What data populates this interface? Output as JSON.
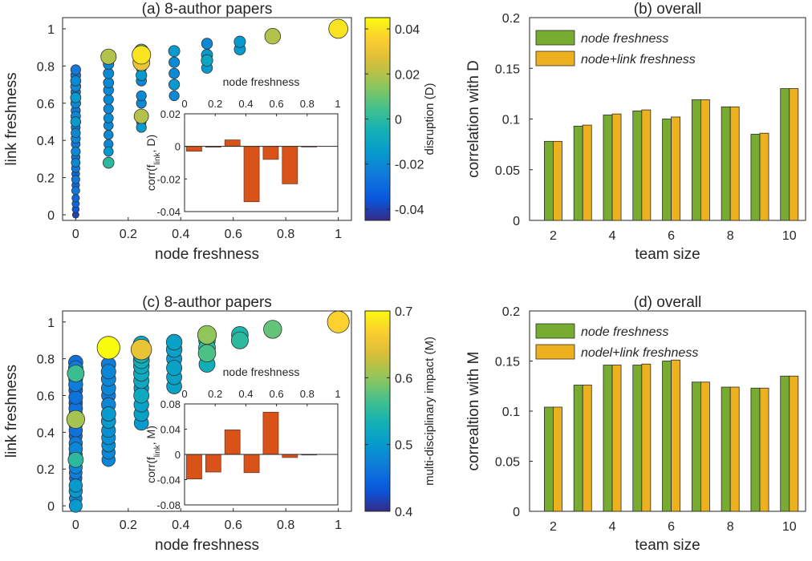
{
  "colors": {
    "green": "#77AC30",
    "orange": "#EDB120",
    "inset_bar": "#D95319"
  },
  "chart_data": [
    {
      "id": "a",
      "type": "scatter",
      "title": "(a) 8-author papers",
      "xlabel": "node freshness",
      "ylabel": "link freshness",
      "xlim": [
        -0.05,
        1.05
      ],
      "ylim": [
        -0.03,
        1.06
      ],
      "xticks": [
        "0",
        "0.2",
        "0.4",
        "0.6",
        "0.8",
        "1"
      ],
      "xtick_vals": [
        0,
        0.2,
        0.4,
        0.6,
        0.8,
        1
      ],
      "yticks": [
        "0",
        "0.2",
        "0.4",
        "0.6",
        "0.8",
        "1"
      ],
      "ytick_vals": [
        0,
        0.2,
        0.4,
        0.6,
        0.8,
        1
      ],
      "colorbar": {
        "label": "disruption (D)",
        "range": [
          -0.045,
          0.045
        ],
        "ticks": [
          "-0.04",
          "-0.02",
          "0",
          "0.02",
          "0.04"
        ],
        "tick_vals": [
          -0.04,
          -0.02,
          0,
          0.02,
          0.04
        ]
      },
      "points": [
        [
          0,
          0,
          -0.04
        ],
        [
          0,
          0.03,
          -0.035
        ],
        [
          0,
          0.06,
          -0.03
        ],
        [
          0,
          0.09,
          -0.03
        ],
        [
          0,
          0.13,
          -0.025
        ],
        [
          0,
          0.16,
          -0.03
        ],
        [
          0,
          0.19,
          -0.025
        ],
        [
          0,
          0.22,
          -0.03
        ],
        [
          0,
          0.25,
          -0.025
        ],
        [
          0,
          0.28,
          -0.02
        ],
        [
          0,
          0.31,
          -0.025
        ],
        [
          0,
          0.34,
          -0.02
        ],
        [
          0,
          0.38,
          -0.025
        ],
        [
          0,
          0.41,
          -0.02
        ],
        [
          0,
          0.44,
          -0.02
        ],
        [
          0,
          0.47,
          -0.025
        ],
        [
          0,
          0.5,
          -0.015
        ],
        [
          0,
          0.53,
          -0.02
        ],
        [
          0,
          0.56,
          -0.025
        ],
        [
          0,
          0.6,
          -0.02
        ],
        [
          0,
          0.63,
          -0.015
        ],
        [
          0,
          0.66,
          -0.025
        ],
        [
          0,
          0.69,
          -0.02
        ],
        [
          0,
          0.72,
          -0.02
        ],
        [
          0,
          0.75,
          -0.025
        ],
        [
          0,
          0.78,
          -0.025
        ],
        [
          0.125,
          0.28,
          0.0
        ],
        [
          0.125,
          0.34,
          -0.015
        ],
        [
          0.125,
          0.38,
          -0.02
        ],
        [
          0.125,
          0.43,
          -0.02
        ],
        [
          0.125,
          0.48,
          -0.02
        ],
        [
          0.125,
          0.52,
          -0.02
        ],
        [
          0.125,
          0.57,
          -0.02
        ],
        [
          0.125,
          0.62,
          -0.02
        ],
        [
          0.125,
          0.67,
          -0.02
        ],
        [
          0.125,
          0.71,
          -0.02
        ],
        [
          0.125,
          0.76,
          -0.02
        ],
        [
          0.125,
          0.81,
          -0.02
        ],
        [
          0.125,
          0.85,
          0.02
        ],
        [
          0.25,
          0.47,
          -0.015
        ],
        [
          0.25,
          0.5,
          -0.02
        ],
        [
          0.25,
          0.53,
          0.02
        ],
        [
          0.25,
          0.6,
          -0.02
        ],
        [
          0.25,
          0.64,
          -0.02
        ],
        [
          0.25,
          0.72,
          -0.02
        ],
        [
          0.25,
          0.75,
          -0.015
        ],
        [
          0.25,
          0.79,
          -0.02
        ],
        [
          0.25,
          0.82,
          0.03
        ],
        [
          0.25,
          0.86,
          0.04
        ],
        [
          0.25,
          0.88,
          0.01
        ],
        [
          0.375,
          0.64,
          -0.02
        ],
        [
          0.375,
          0.7,
          -0.015
        ],
        [
          0.375,
          0.76,
          -0.02
        ],
        [
          0.375,
          0.82,
          -0.02
        ],
        [
          0.375,
          0.88,
          -0.015
        ],
        [
          0.5,
          0.79,
          -0.015
        ],
        [
          0.5,
          0.83,
          -0.01
        ],
        [
          0.5,
          0.86,
          -0.015
        ],
        [
          0.5,
          0.92,
          -0.02
        ],
        [
          0.625,
          0.89,
          -0.015
        ],
        [
          0.625,
          0.93,
          -0.015
        ],
        [
          0.75,
          0.96,
          0.02
        ],
        [
          1,
          1,
          0.04
        ]
      ],
      "inset": {
        "xlabel": "node freshness",
        "ylabel": "corr(f_link, D)",
        "xticks": [
          "0",
          "0.2",
          "0.4",
          "0.6",
          "0.8",
          "1"
        ],
        "xtick_vals": [
          0,
          0.2,
          0.4,
          0.6,
          0.8,
          1
        ],
        "yticks": [
          "0.02",
          "0",
          "-0.02",
          "-0.04"
        ],
        "ytick_vals": [
          0.02,
          0,
          -0.02,
          -0.04
        ],
        "ylim": [
          -0.04,
          0.02
        ],
        "x": [
          0,
          0.125,
          0.25,
          0.375,
          0.5,
          0.625,
          0.75
        ],
        "values": [
          -0.003,
          -0.0005,
          0.004,
          -0.034,
          -0.008,
          -0.023,
          0.0
        ]
      }
    },
    {
      "id": "b",
      "type": "bar",
      "title": "(b) overall",
      "xlabel": "team size",
      "ylabel": "correlation with D",
      "ylim": [
        0,
        0.2
      ],
      "xticks": [
        "2",
        "4",
        "6",
        "8",
        "10"
      ],
      "xtick_vals": [
        2,
        4,
        6,
        8,
        10
      ],
      "yticks": [
        "0",
        "0.05",
        "0.1",
        "0.15",
        "0.2"
      ],
      "ytick_vals": [
        0,
        0.05,
        0.1,
        0.15,
        0.2
      ],
      "categories": [
        2,
        3,
        4,
        5,
        6,
        7,
        8,
        9,
        10
      ],
      "legend_position": "top-left",
      "series": [
        {
          "name": "node freshness",
          "values": [
            0.078,
            0.093,
            0.104,
            0.108,
            0.1,
            0.119,
            0.112,
            0.085,
            0.13
          ]
        },
        {
          "name": "node+link freshness",
          "values": [
            0.078,
            0.094,
            0.105,
            0.109,
            0.102,
            0.119,
            0.112,
            0.086,
            0.13
          ]
        }
      ]
    },
    {
      "id": "c",
      "type": "scatter",
      "title": "(c) 8-author papers",
      "xlabel": "node freshness",
      "ylabel": "link freshness",
      "xlim": [
        -0.05,
        1.05
      ],
      "ylim": [
        -0.03,
        1.06
      ],
      "xticks": [
        "0",
        "0.2",
        "0.4",
        "0.6",
        "0.8",
        "1"
      ],
      "xtick_vals": [
        0,
        0.2,
        0.4,
        0.6,
        0.8,
        1
      ],
      "yticks": [
        "0",
        "0.2",
        "0.4",
        "0.6",
        "0.8",
        "1"
      ],
      "ytick_vals": [
        0,
        0.2,
        0.4,
        0.6,
        0.8,
        1
      ],
      "colorbar": {
        "label": "multi-disciplinary impact (M)",
        "range": [
          0.4,
          0.7
        ],
        "ticks": [
          "0.4",
          "0.5",
          "0.6",
          "0.7"
        ],
        "tick_vals": [
          0.4,
          0.5,
          0.6,
          0.7
        ]
      },
      "points": [
        [
          0,
          0,
          0.5
        ],
        [
          0,
          0.04,
          0.48
        ],
        [
          0,
          0.08,
          0.5
        ],
        [
          0,
          0.11,
          0.5
        ],
        [
          0,
          0.15,
          0.46
        ],
        [
          0,
          0.18,
          0.47
        ],
        [
          0,
          0.21,
          0.48
        ],
        [
          0,
          0.25,
          0.55
        ],
        [
          0,
          0.28,
          0.47
        ],
        [
          0,
          0.31,
          0.48
        ],
        [
          0,
          0.34,
          0.47
        ],
        [
          0,
          0.38,
          0.46
        ],
        [
          0,
          0.41,
          0.46
        ],
        [
          0,
          0.44,
          0.45
        ],
        [
          0,
          0.47,
          0.61
        ],
        [
          0,
          0.5,
          0.45
        ],
        [
          0,
          0.53,
          0.46
        ],
        [
          0,
          0.56,
          0.45
        ],
        [
          0,
          0.59,
          0.46
        ],
        [
          0,
          0.63,
          0.45
        ],
        [
          0,
          0.66,
          0.47
        ],
        [
          0,
          0.69,
          0.46
        ],
        [
          0,
          0.72,
          0.56
        ],
        [
          0,
          0.75,
          0.47
        ],
        [
          0,
          0.78,
          0.46
        ],
        [
          0.125,
          0.25,
          0.48
        ],
        [
          0.125,
          0.29,
          0.48
        ],
        [
          0.125,
          0.33,
          0.49
        ],
        [
          0.125,
          0.37,
          0.49
        ],
        [
          0.125,
          0.41,
          0.49
        ],
        [
          0.125,
          0.46,
          0.5
        ],
        [
          0.125,
          0.5,
          0.5
        ],
        [
          0.125,
          0.55,
          0.48
        ],
        [
          0.125,
          0.6,
          0.47
        ],
        [
          0.125,
          0.64,
          0.48
        ],
        [
          0.125,
          0.69,
          0.48
        ],
        [
          0.125,
          0.73,
          0.48
        ],
        [
          0.125,
          0.77,
          0.47
        ],
        [
          0.125,
          0.86,
          0.7
        ],
        [
          0.25,
          0.45,
          0.5
        ],
        [
          0.25,
          0.5,
          0.51
        ],
        [
          0.25,
          0.55,
          0.51
        ],
        [
          0.25,
          0.6,
          0.52
        ],
        [
          0.25,
          0.64,
          0.5
        ],
        [
          0.25,
          0.68,
          0.52
        ],
        [
          0.25,
          0.72,
          0.52
        ],
        [
          0.25,
          0.76,
          0.52
        ],
        [
          0.25,
          0.79,
          0.53
        ],
        [
          0.25,
          0.82,
          0.53
        ],
        [
          0.25,
          0.85,
          0.65
        ],
        [
          0.25,
          0.88,
          0.52
        ],
        [
          0.375,
          0.65,
          0.51
        ],
        [
          0.375,
          0.7,
          0.51
        ],
        [
          0.375,
          0.75,
          0.51
        ],
        [
          0.375,
          0.8,
          0.5
        ],
        [
          0.375,
          0.85,
          0.51
        ],
        [
          0.375,
          0.89,
          0.51
        ],
        [
          0.5,
          0.77,
          0.53
        ],
        [
          0.5,
          0.83,
          0.57
        ],
        [
          0.5,
          0.86,
          0.55
        ],
        [
          0.5,
          0.9,
          0.54
        ],
        [
          0.5,
          0.93,
          0.6
        ],
        [
          0.625,
          0.9,
          0.55
        ],
        [
          0.625,
          0.93,
          0.54
        ],
        [
          0.75,
          0.96,
          0.58
        ],
        [
          1,
          1,
          0.67
        ]
      ],
      "inset": {
        "xlabel": "node freshness",
        "ylabel": "corr(f_link, M)",
        "xticks": [
          "0",
          "0.2",
          "0.4",
          "0.6",
          "0.8",
          "1"
        ],
        "xtick_vals": [
          0,
          0.2,
          0.4,
          0.6,
          0.8,
          1
        ],
        "yticks": [
          "0.08",
          "0.04",
          "0",
          "-0.04",
          "-0.08"
        ],
        "ytick_vals": [
          0.08,
          0.04,
          0,
          -0.04,
          -0.08
        ],
        "ylim": [
          -0.08,
          0.08
        ],
        "x": [
          0,
          0.125,
          0.25,
          0.375,
          0.5,
          0.625,
          0.75
        ],
        "values": [
          -0.039,
          -0.028,
          0.039,
          -0.029,
          0.067,
          -0.005,
          0.0
        ]
      }
    },
    {
      "id": "d",
      "type": "bar",
      "title": "(d) overall",
      "xlabel": "team size",
      "ylabel": "correaltion with M",
      "ylim": [
        0,
        0.2
      ],
      "xticks": [
        "2",
        "4",
        "6",
        "8",
        "10"
      ],
      "xtick_vals": [
        2,
        4,
        6,
        8,
        10
      ],
      "yticks": [
        "0",
        "0.05",
        "0.1",
        "0.15",
        "0.2"
      ],
      "ytick_vals": [
        0,
        0.05,
        0.1,
        0.15,
        0.2
      ],
      "categories": [
        2,
        3,
        4,
        5,
        6,
        7,
        8,
        9,
        10
      ],
      "legend_position": "top-left",
      "series": [
        {
          "name": "node freshness",
          "values": [
            0.104,
            0.126,
            0.146,
            0.146,
            0.15,
            0.129,
            0.124,
            0.123,
            0.135
          ]
        },
        {
          "name": "nodel+link freshness",
          "values": [
            0.104,
            0.126,
            0.146,
            0.147,
            0.151,
            0.129,
            0.124,
            0.123,
            0.135
          ]
        }
      ]
    }
  ]
}
